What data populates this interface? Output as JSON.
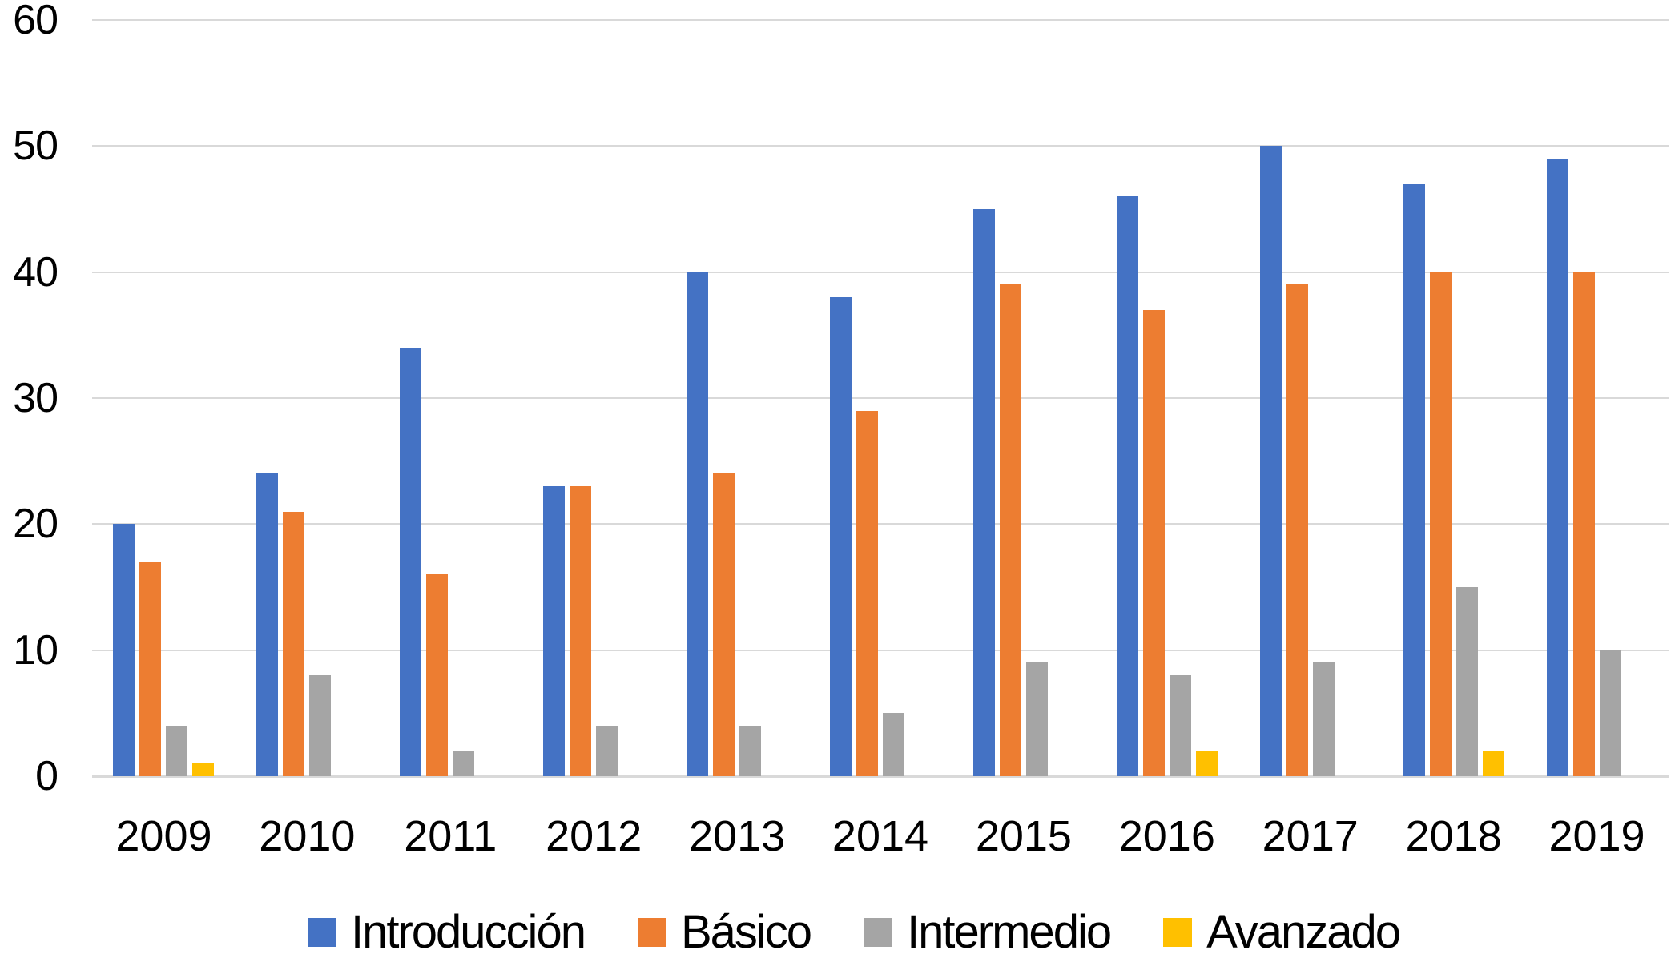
{
  "chart_data": {
    "type": "bar",
    "title": "",
    "categories": [
      "2009",
      "2010",
      "2011",
      "2012",
      "2013",
      "2014",
      "2015",
      "2016",
      "2017",
      "2018",
      "2019"
    ],
    "series": [
      {
        "name": "Introducción",
        "color": "#4472C4",
        "values": [
          20,
          24,
          34,
          23,
          40,
          38,
          45,
          46,
          50,
          47,
          49
        ]
      },
      {
        "name": "Básico",
        "color": "#ED7D31",
        "values": [
          17,
          21,
          16,
          23,
          24,
          29,
          39,
          37,
          39,
          40,
          40
        ]
      },
      {
        "name": "Intermedio",
        "color": "#A5A5A5",
        "values": [
          4,
          8,
          2,
          4,
          4,
          5,
          9,
          8,
          9,
          15,
          10
        ]
      },
      {
        "name": "Avanzado",
        "color": "#FFC000",
        "values": [
          1,
          0,
          0,
          0,
          0,
          0,
          0,
          2,
          0,
          2,
          0
        ]
      }
    ],
    "xlabel": "",
    "ylabel": "",
    "ylim": [
      0,
      60
    ],
    "yticks": [
      0,
      10,
      20,
      30,
      40,
      50,
      60
    ],
    "grid": "horizontal",
    "gridline_color": "#D9D9D9",
    "background": "#FFFFFF",
    "text_color": "#000000",
    "legend_position": "bottom-center"
  }
}
